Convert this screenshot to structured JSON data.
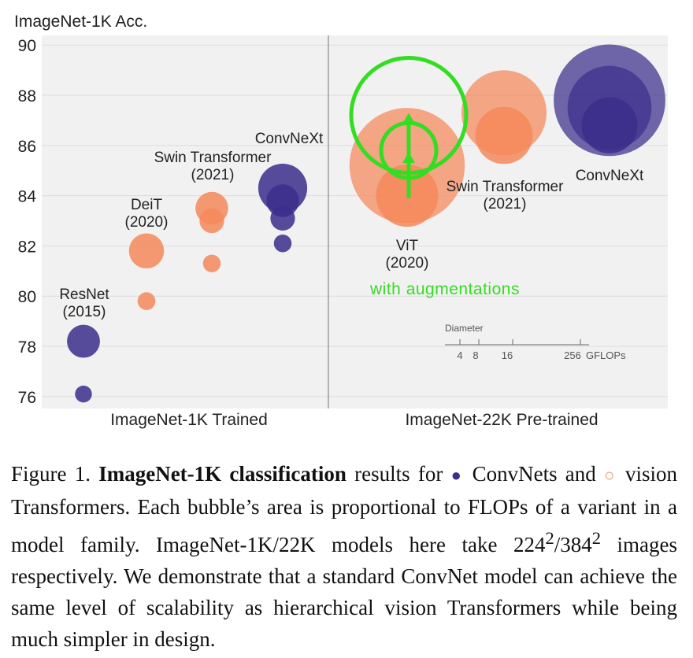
{
  "chart_data": {
    "type": "scatter",
    "ylabel": "ImageNet-1K Acc.",
    "ylim": [
      75.5,
      90
    ],
    "yticks": [
      76,
      78,
      80,
      82,
      84,
      86,
      88,
      90
    ],
    "grid": true,
    "panels": [
      {
        "name": "ImageNet-1K Trained"
      },
      {
        "name": "ImageNet-22K Pre-trained"
      }
    ],
    "colors": {
      "convnet": "#3b2e8c",
      "transformer": "#f4885a",
      "annotation": "#33dd22"
    },
    "bubble_size_unit": "GFLOPs",
    "series": [
      {
        "family": "ResNet",
        "year": "(2015)",
        "kind": "convnet",
        "panel": 0,
        "points": [
          {
            "acc": 76.1,
            "gflops": 4.1
          },
          {
            "acc": 78.2,
            "gflops": 15.6
          }
        ]
      },
      {
        "family": "DeiT",
        "year": "(2020)",
        "kind": "transformer",
        "panel": 0,
        "points": [
          {
            "acc": 79.8,
            "gflops": 4.6
          },
          {
            "acc": 81.8,
            "gflops": 17.6
          }
        ]
      },
      {
        "family": "Swin Transformer",
        "year": "(2021)",
        "kind": "transformer",
        "panel": 0,
        "points": [
          {
            "acc": 81.3,
            "gflops": 4.5
          },
          {
            "acc": 83.0,
            "gflops": 8.7
          },
          {
            "acc": 83.5,
            "gflops": 15.4
          }
        ]
      },
      {
        "family": "ConvNeXt",
        "year": "",
        "kind": "convnet",
        "panel": 0,
        "points": [
          {
            "acc": 82.1,
            "gflops": 4.5
          },
          {
            "acc": 83.1,
            "gflops": 8.7
          },
          {
            "acc": 83.8,
            "gflops": 15.4
          },
          {
            "acc": 84.3,
            "gflops": 34.4
          }
        ]
      },
      {
        "family": "ViT",
        "year": "(2020)",
        "kind": "transformer",
        "panel": 1,
        "points": [
          {
            "acc": 85.2,
            "gflops": 190.7
          },
          {
            "acc": 84.0,
            "gflops": 55.5
          }
        ]
      },
      {
        "family": "Swin Transformer",
        "year": "(2021)",
        "kind": "transformer",
        "panel": 1,
        "points": [
          {
            "acc": 87.3,
            "gflops": 103.9
          },
          {
            "acc": 86.4,
            "gflops": 47.0
          }
        ]
      },
      {
        "family": "ConvNeXt",
        "year": "",
        "kind": "convnet",
        "panel": 1,
        "points": [
          {
            "acc": 87.8,
            "gflops": 179.0
          },
          {
            "acc": 87.5,
            "gflops": 101.0
          },
          {
            "acc": 86.8,
            "gflops": 45.0
          }
        ]
      }
    ],
    "annotations": {
      "augmentations_label": "with augmentations",
      "arrow_from_acc": 83.9,
      "arrow_to_acc": 87.3,
      "marker_accs": [
        87.2,
        85.8
      ]
    },
    "size_legend": {
      "title": "Diameter",
      "ticks": [
        "4",
        "8",
        "16",
        "256"
      ],
      "unit": "GFLOPs"
    }
  },
  "caption": {
    "figure_label": "Figure 1.",
    "title": "ImageNet-1K classification",
    "text_1": "results for",
    "convnets": "ConvNets and",
    "transformers": "vision Transformers. Each bubble’s area is proportional to FLOPs of a variant in a model family. ImageNet-1K/22K models here take 224",
    "sup_1": "2",
    "text_2": "/384",
    "sup_2": "2",
    "text_3": "images respectively. We demonstrate that a standard ConvNet model can achieve the same level of scalability as hierarchical vision Transformers while being much simpler in design.",
    "marker_filled": "●",
    "marker_open": "○"
  }
}
